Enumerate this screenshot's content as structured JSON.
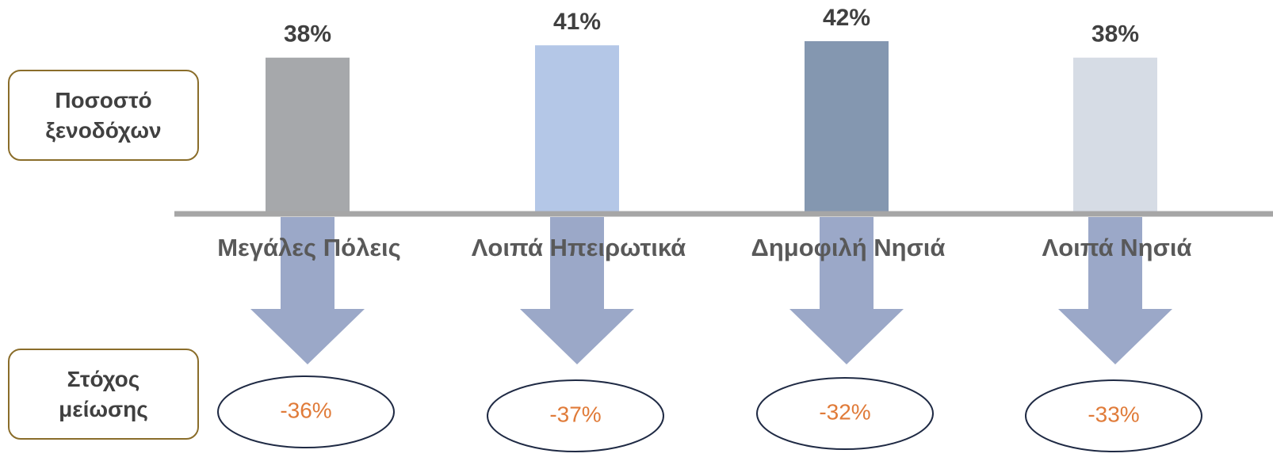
{
  "chart_data": {
    "type": "bar",
    "row_labels": [
      "Ποσοστό ξενοδόχων",
      "Στόχος μείωσης"
    ],
    "categories": [
      "Μεγάλες Πόλεις",
      "Λοιπά Ηπειρωτικά",
      "Δημοφιλή Νησιά",
      "Λοιπά Νησιά"
    ],
    "values": [
      38,
      41,
      42,
      38
    ],
    "value_labels": [
      "38%",
      "41%",
      "42%",
      "38%"
    ],
    "colors": [
      "#a6a8ab",
      "#b4c7e7",
      "#8497b0",
      "#d6dce5"
    ],
    "target_values": [
      -36,
      -37,
      -32,
      -33
    ],
    "target_labels": [
      "-36%",
      "-37%",
      "-32%",
      "-33%"
    ]
  }
}
